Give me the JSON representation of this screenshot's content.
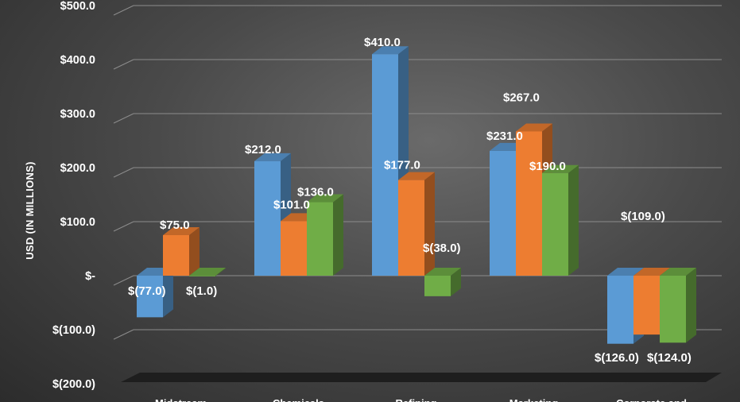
{
  "chart_data": {
    "type": "bar",
    "ylabel": "USD (IN MILLIONS)",
    "xlabel": "",
    "title": "",
    "ylim": [
      -200,
      500
    ],
    "yticks": [
      500,
      400,
      300,
      200,
      100,
      0,
      -100,
      -200
    ],
    "ytick_labels": [
      "$500.0",
      "$400.0",
      "$300.0",
      "$200.0",
      "$100.0",
      "$-",
      "$(100.0)",
      "$(200.0)"
    ],
    "grid": true,
    "legend": "none",
    "categories": [
      "Midstream",
      "Chemicals",
      "Refining",
      "Marketing",
      "Corporate and"
    ],
    "series": [
      {
        "color": "#5b9bd5",
        "values": [
          -77,
          212,
          410,
          231,
          -126
        ],
        "labels": [
          "$(77.0)",
          "$212.0",
          "$410.0",
          "$231.0",
          "$(126.0)"
        ]
      },
      {
        "color": "#ed7d31",
        "values": [
          75,
          101,
          177,
          267,
          -109
        ],
        "labels": [
          "$75.0",
          "$101.0",
          "$177.0",
          "$267.0",
          "$(109.0)"
        ]
      },
      {
        "color": "#70ad47",
        "values": [
          -1,
          136,
          -38,
          190,
          -124
        ],
        "labels": [
          "$(1.0)",
          "$136.0",
          "$(38.0)",
          "$190.0",
          "$(124.0)"
        ]
      }
    ]
  }
}
